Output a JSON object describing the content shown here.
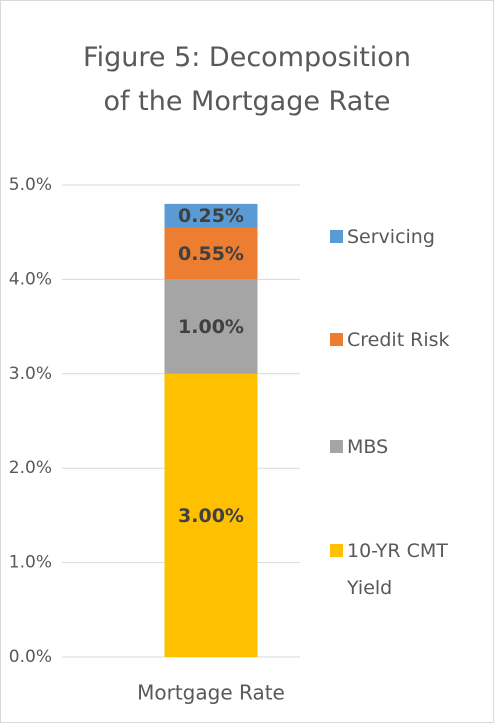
{
  "chart_data": {
    "type": "stacked_bar",
    "title": "Figure 5: Decomposition of the Mortgage Rate",
    "categories": [
      "Mortgage Rate"
    ],
    "series": [
      {
        "name": "10-YR CMT Yield",
        "color": "#FFC000",
        "values": [
          3.0
        ],
        "value_labels": [
          "3.00%"
        ]
      },
      {
        "name": "MBS",
        "color": "#A5A5A5",
        "values": [
          1.0
        ],
        "value_labels": [
          "1.00%"
        ]
      },
      {
        "name": "Credit Risk",
        "color": "#ED7D31",
        "values": [
          0.55
        ],
        "value_labels": [
          "0.55%"
        ]
      },
      {
        "name": "Servicing",
        "color": "#5B9BD5",
        "values": [
          0.25
        ],
        "value_labels": [
          "0.25%"
        ]
      }
    ],
    "ylim": [
      0,
      5
    ],
    "yticks": [
      {
        "value": 0,
        "label": "0.0%"
      },
      {
        "value": 1,
        "label": "1.0%"
      },
      {
        "value": 2,
        "label": "2.0%"
      },
      {
        "value": 3,
        "label": "3.0%"
      },
      {
        "value": 4,
        "label": "4.0%"
      },
      {
        "value": 5,
        "label": "5.0%"
      }
    ],
    "grid": true,
    "legend": "right"
  }
}
